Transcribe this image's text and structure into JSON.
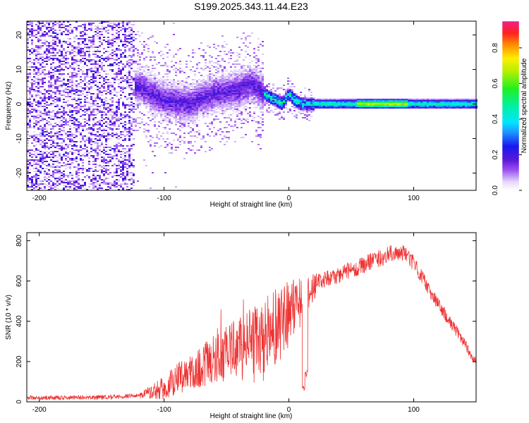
{
  "title": "S199.2025.343.11.44.E23",
  "chart_data": [
    {
      "type": "heatmap",
      "name": "spectrogram",
      "xlabel": "Height of straight line (km)",
      "ylabel": "Frequency (Hz)",
      "xlim": [
        -210,
        150
      ],
      "ylim": [
        -25,
        24
      ],
      "xticks": [
        -200,
        -100,
        0,
        100
      ],
      "yticks": [
        20,
        10,
        0,
        -10,
        -20
      ],
      "colorbar": {
        "label": "Normalized spectral amplitude",
        "range": [
          0,
          0.95
        ],
        "ticks": [
          0.0,
          0.2,
          0.4,
          0.6,
          0.8
        ],
        "tick_labels": [
          "0.0",
          "0.2",
          "0.4",
          "0.6",
          "0.8"
        ]
      },
      "regions": [
        {
          "x_range": [
            -210,
            -123
          ],
          "freq_range": [
            -25,
            24
          ],
          "amplitude": "0.05-0.35",
          "pattern": "noise"
        },
        {
          "x_range": [
            -123,
            -20
          ],
          "freq_center": [
            [
              -120,
              5
            ],
            [
              -100,
              1
            ],
            [
              -80,
              0
            ],
            [
              -60,
              3
            ],
            [
              -40,
              4
            ],
            [
              -30,
              6
            ],
            [
              -20,
              3
            ]
          ],
          "amplitude": "0.1-0.3"
        },
        {
          "x_range": [
            -20,
            20
          ],
          "freq_center": [
            [
              -20,
              3
            ],
            [
              -10,
              1
            ],
            [
              -5,
              0
            ],
            [
              0,
              3
            ],
            [
              5,
              1
            ],
            [
              10,
              0
            ],
            [
              20,
              0
            ]
          ],
          "amplitude": "0.3-0.85"
        },
        {
          "x_range": [
            20,
            150
          ],
          "freq_center": [
            [
              20,
              0
            ],
            [
              150,
              0
            ]
          ],
          "amplitude": "0.4-0.9",
          "peak_at": [
            55,
            95
          ]
        }
      ]
    },
    {
      "type": "line",
      "name": "snr",
      "xlabel": "Height of straight line (km)",
      "ylabel": "SNR (10 * v/v)",
      "xlim": [
        -210,
        150
      ],
      "ylim": [
        0,
        840
      ],
      "xticks": [
        -200,
        -100,
        0,
        100
      ],
      "yticks": [
        0,
        200,
        400,
        600,
        800
      ],
      "color": "#ee3333",
      "envelope": [
        {
          "x": -210,
          "y": 20
        },
        {
          "x": -150,
          "y": 22
        },
        {
          "x": -120,
          "y": 30
        },
        {
          "x": -100,
          "y": 70
        },
        {
          "x": -80,
          "y": 150
        },
        {
          "x": -60,
          "y": 210
        },
        {
          "x": -40,
          "y": 260
        },
        {
          "x": -20,
          "y": 310
        },
        {
          "x": -5,
          "y": 400
        },
        {
          "x": 10,
          "y": 500
        },
        {
          "x": 25,
          "y": 600
        },
        {
          "x": 40,
          "y": 630
        },
        {
          "x": 60,
          "y": 680
        },
        {
          "x": 80,
          "y": 730
        },
        {
          "x": 90,
          "y": 750
        },
        {
          "x": 100,
          "y": 690
        },
        {
          "x": 120,
          "y": 480
        },
        {
          "x": 140,
          "y": 300
        },
        {
          "x": 150,
          "y": 190
        }
      ],
      "noise_amplitude": [
        {
          "x": -210,
          "a": 10
        },
        {
          "x": -120,
          "a": 12
        },
        {
          "x": -100,
          "a": 60
        },
        {
          "x": -60,
          "a": 120
        },
        {
          "x": -20,
          "a": 220
        },
        {
          "x": 10,
          "a": 130
        },
        {
          "x": 25,
          "a": 40
        },
        {
          "x": 80,
          "a": 45
        },
        {
          "x": 150,
          "a": 25
        }
      ],
      "dips": [
        {
          "x": 12,
          "y": 40
        },
        {
          "x": 14,
          "y": 120
        }
      ]
    }
  ]
}
